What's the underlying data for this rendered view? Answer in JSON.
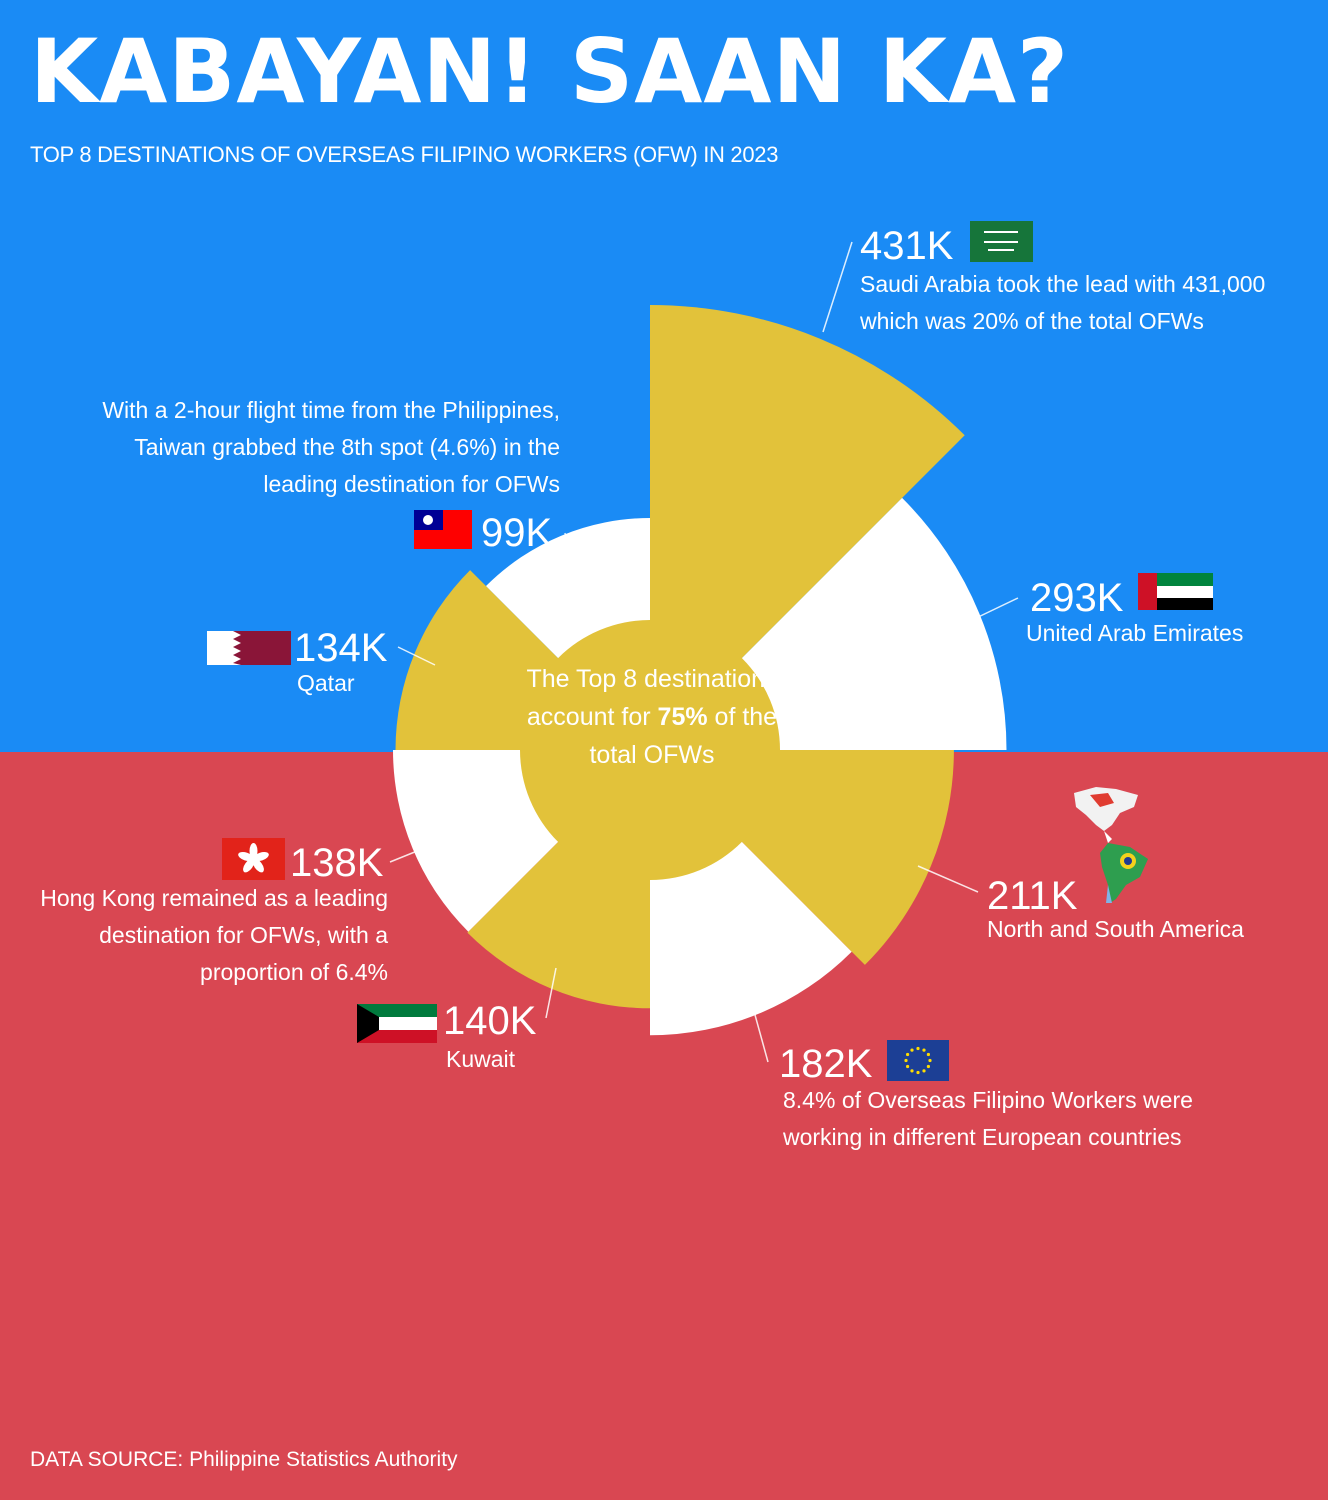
{
  "header": {
    "title": "KABAYAN! SAAN KA?",
    "subtitle": "TOP 8 DESTINATIONS OF OVERSEAS FILIPINO WORKERS (OFW) IN 2023"
  },
  "center": {
    "text_before": "The Top 8 destinations account for ",
    "highlight": "75%",
    "text_after": " of the total OFWs"
  },
  "source": "DATA SOURCE: Philippine Statistics Authority",
  "colors": {
    "top_background": "#1a8bf5",
    "bottom_background": "#d94752",
    "gold": "#e2c23a",
    "white": "#ffffff"
  },
  "labels": {
    "saudi": {
      "value": "431K",
      "note": "Saudi Arabia took the lead with 431,000 which was 20% of the total OFWs"
    },
    "uae": {
      "value": "293K",
      "name": "United Arab Emirates"
    },
    "americas": {
      "value": "211K",
      "name": "North and South America"
    },
    "europe": {
      "value": "182K",
      "note": "8.4% of Overseas Filipino Workers were working in different European countries"
    },
    "kuwait": {
      "value": "140K",
      "name": "Kuwait"
    },
    "hongkong": {
      "value": "138K",
      "note": "Hong Kong remained as a leading destination for OFWs, with a proportion of 6.4%"
    },
    "qatar": {
      "value": "134K",
      "name": "Qatar"
    },
    "taiwan": {
      "value": "99K",
      "note": "With a 2-hour flight time from the Philippines, Taiwan grabbed the 8th spot (4.6%) in the leading destination for OFWs"
    }
  },
  "chart_data": {
    "type": "polar-area",
    "unit": "OFWs",
    "categories": [
      "Saudi Arabia",
      "United Arab Emirates",
      "North and South America",
      "Europe",
      "Kuwait",
      "Hong Kong",
      "Qatar",
      "Taiwan"
    ],
    "values": [
      431000,
      293000,
      211000,
      182000,
      140000,
      138000,
      134000,
      99000
    ],
    "display_values": [
      "431K",
      "293K",
      "211K",
      "182K",
      "140K",
      "138K",
      "134K",
      "99K"
    ],
    "shares_percent": {
      "Saudi Arabia": 20,
      "Europe": 8.4,
      "Hong Kong": 6.4,
      "Taiwan": 4.6
    },
    "top8_share_percent": 75,
    "slice_colors": [
      "#e2c23a",
      "#ffffff",
      "#e2c23a",
      "#ffffff",
      "#e2c23a",
      "#ffffff",
      "#e2c23a",
      "#ffffff"
    ],
    "icons": [
      "saudi-flag-icon",
      "uae-flag-icon",
      "americas-map-icon",
      "eu-flag-icon",
      "kuwait-flag-icon",
      "hongkong-flag-icon",
      "qatar-flag-icon",
      "taiwan-flag-icon"
    ]
  }
}
